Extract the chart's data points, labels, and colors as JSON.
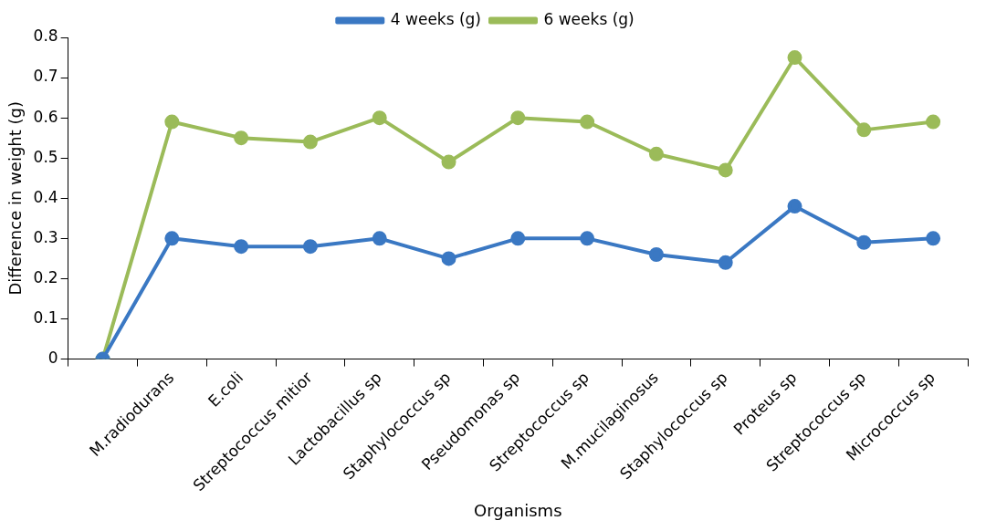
{
  "chart_data": {
    "type": "line",
    "xlabel": "Organisms",
    "ylabel": "Difference in weight (g)",
    "categories": [
      null,
      "M.radiodurans",
      "E.coli",
      "Streptococcus mitior",
      "Lactobacillus sp",
      "Staphylococcus sp",
      "Pseudomonas sp",
      "Streptococcus sp",
      "M.mucilaginosus",
      "Staphylococcus sp",
      "Proteus sp",
      "Streptococcus sp",
      "Micrococcus sp"
    ],
    "series": [
      {
        "name": "4 weeks (g)",
        "color": "#3a78c3",
        "values": [
          0,
          0.3,
          0.28,
          0.28,
          0.3,
          0.25,
          0.3,
          0.3,
          0.26,
          0.24,
          0.38,
          0.29,
          0.3
        ]
      },
      {
        "name": "6 weeks (g)",
        "color": "#9bbb59",
        "values": [
          0,
          0.59,
          0.55,
          0.54,
          0.6,
          0.49,
          0.6,
          0.59,
          0.51,
          0.47,
          0.75,
          0.57,
          0.59
        ]
      }
    ],
    "ylim": [
      0,
      0.8
    ],
    "yticks": [
      0,
      0.1,
      0.2,
      0.3,
      0.4,
      0.5,
      0.6,
      0.7,
      0.8
    ],
    "grid": false,
    "legend": "top",
    "marker": "circle",
    "line_style": "solid"
  }
}
